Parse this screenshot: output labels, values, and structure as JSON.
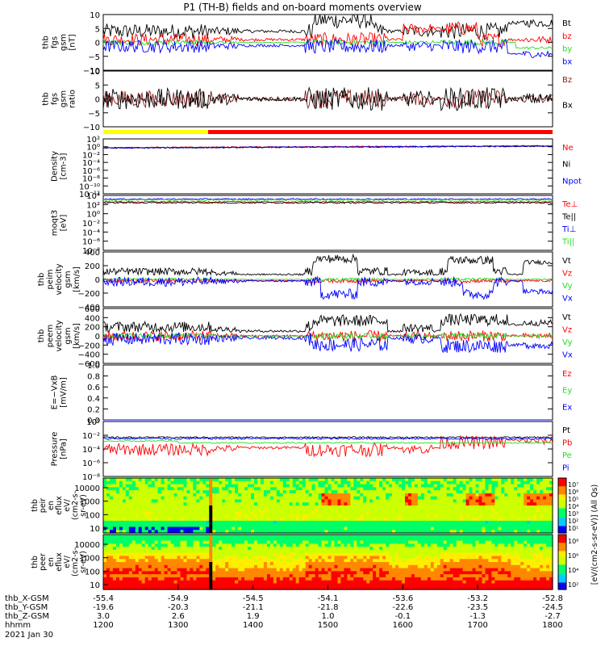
{
  "title": "P1 (TH-B) fields and on-board moments overview",
  "date_label": "2021 Jan 30",
  "colors": {
    "black": "#000000",
    "red": "#ff0000",
    "green": "#22dd22",
    "blue": "#0000ff",
    "darkred": "#8b1a1a",
    "yellow": "#ffff00",
    "magenta": "#dd0000"
  },
  "chart_data": {
    "type": "line",
    "x_axis": {
      "label": "hhmm",
      "ticks": [
        "1200",
        "1300",
        "1400",
        "1500",
        "1600",
        "1700",
        "1800"
      ],
      "xlim": [
        1200,
        1800
      ],
      "ephemeris": [
        {
          "label": "thb_X-GSM",
          "values": [
            "-55.4",
            "-54.9",
            "-54.5",
            "-54.1",
            "-53.6",
            "-53.2",
            "-52.8"
          ]
        },
        {
          "label": "thb_Y-GSM",
          "values": [
            "-19.6",
            "-20.3",
            "-21.1",
            "-21.8",
            "-22.6",
            "-23.5",
            "-24.5"
          ]
        },
        {
          "label": "thb_Z-GSM",
          "values": [
            "3.0",
            "2.6",
            "1.9",
            "1.0",
            "-0.1",
            "-1.3",
            "-2.7"
          ]
        }
      ]
    },
    "mode_bar": [
      {
        "from": 1200,
        "to": 1340,
        "color": "yellow"
      },
      {
        "from": 1340,
        "to": 1800,
        "color": "red"
      }
    ],
    "panels": [
      {
        "id": "fgs-total",
        "ylabel": [
          "thb",
          "fgs",
          "gsm",
          "[nT]"
        ],
        "ylim": [
          -10,
          10
        ],
        "yticks": [
          "10",
          "5",
          "0",
          "−5",
          "−10"
        ],
        "scale": "linear",
        "series": [
          {
            "name": "Bt",
            "color": "black"
          },
          {
            "name": "bz",
            "color": "red"
          },
          {
            "name": "by",
            "color": "green"
          },
          {
            "name": "bx",
            "color": "blue"
          }
        ]
      },
      {
        "id": "fgs-ratio",
        "ylabel": [
          "thb",
          "fgs",
          "gsm",
          "ratio"
        ],
        "ylim": [
          -12,
          12
        ],
        "yticks": [
          "10",
          "5",
          "0",
          "−5",
          "−10"
        ],
        "scale": "linear",
        "series": [
          {
            "name": "Bz",
            "color": "darkred"
          },
          {
            "name": "Bx",
            "color": "black"
          }
        ]
      },
      {
        "id": "density",
        "ylabel": [
          "Density",
          "[cm-3]"
        ],
        "ylim": [
          -12,
          3
        ],
        "yticks": [
          "10²",
          "10⁰",
          "10⁻²",
          "10⁻⁴",
          "10⁻⁶",
          "10⁻⁸",
          "10⁻¹⁰",
          "10⁻¹²"
        ],
        "scale": "log",
        "series": [
          {
            "name": "Ne",
            "color": "red"
          },
          {
            "name": "Ni",
            "color": "black"
          },
          {
            "name": "Npot",
            "color": "blue"
          }
        ]
      },
      {
        "id": "temperature",
        "ylabel": [
          "moqt3",
          "[eV]"
        ],
        "ylim": [
          -8,
          4
        ],
        "yticks": [
          "10⁴",
          "10²",
          "10⁰",
          "10⁻²",
          "10⁻⁴",
          "10⁻⁶",
          "10⁻⁸"
        ],
        "scale": "log",
        "series": [
          {
            "name": "Te⊥",
            "color": "red"
          },
          {
            "name": "Te||",
            "color": "black"
          },
          {
            "name": "Ti⊥",
            "color": "blue"
          },
          {
            "name": "Ti||",
            "color": "green"
          }
        ]
      },
      {
        "id": "peim-velocity",
        "ylabel": [
          "thb",
          "peim",
          "velocity",
          "gsm",
          "[km/s]"
        ],
        "ylim": [
          -400,
          400
        ],
        "yticks": [
          "400",
          "200",
          "0",
          "−200",
          "−400"
        ],
        "scale": "linear",
        "series": [
          {
            "name": "Vt",
            "color": "black"
          },
          {
            "name": "Vz",
            "color": "red"
          },
          {
            "name": "Vy",
            "color": "green"
          },
          {
            "name": "Vx",
            "color": "blue"
          }
        ]
      },
      {
        "id": "peem-velocity",
        "ylabel": [
          "thb",
          "peem",
          "velocity",
          "gsm",
          "[km/s]"
        ],
        "ylim": [
          -600,
          600
        ],
        "yticks": [
          "600",
          "400",
          "200",
          "0",
          "−200",
          "−400",
          "−600"
        ],
        "scale": "linear",
        "series": [
          {
            "name": "Vt",
            "color": "black"
          },
          {
            "name": "Vz",
            "color": "red"
          },
          {
            "name": "Vy",
            "color": "green"
          },
          {
            "name": "Vx",
            "color": "blue"
          }
        ]
      },
      {
        "id": "efield",
        "ylabel": [
          "E=−VxB",
          "[mV/m]"
        ],
        "ylim": [
          0,
          1
        ],
        "yticks": [
          "1.0",
          "0.8",
          "0.6",
          "0.4",
          "0.2",
          "0.0"
        ],
        "scale": "linear",
        "series": [
          {
            "name": "Ez",
            "color": "red"
          },
          {
            "name": "Ey",
            "color": "green"
          },
          {
            "name": "Ex",
            "color": "blue"
          }
        ]
      },
      {
        "id": "pressure",
        "ylabel": [
          "Pressure",
          "[nPa]"
        ],
        "ylim": [
          -8,
          1
        ],
        "yticks": [
          "10⁰",
          "10⁻²",
          "10⁻⁴",
          "10⁻⁶",
          "10⁻⁸"
        ],
        "scale": "log",
        "series": [
          {
            "name": "Pt",
            "color": "black"
          },
          {
            "name": "Pb",
            "color": "red"
          },
          {
            "name": "Pe",
            "color": "green"
          },
          {
            "name": "Pi",
            "color": "blue"
          }
        ]
      }
    ],
    "spectrograms": [
      {
        "id": "peir-spec",
        "type": "heatmap",
        "ylabel": [
          "thb",
          "peir",
          "en",
          "eflux",
          "eV/",
          "(cm2-s-",
          "sr-eV)"
        ],
        "yticks": [
          "10000",
          "1000",
          "100",
          "10"
        ],
        "ylim": [
          5,
          30000
        ],
        "scale": "log",
        "colorbar": {
          "ticks": [
            "10⁷",
            "10⁶",
            "10⁵",
            "10⁴",
            "10³",
            "10²",
            "10¹"
          ]
        }
      },
      {
        "id": "peer-spec",
        "type": "heatmap",
        "ylabel": [
          "thb",
          "peer",
          "en",
          "eflux",
          "eV/",
          "(cm2-s-",
          "sr-eV)"
        ],
        "yticks": [
          "10000",
          "1000",
          "100",
          "10"
        ],
        "ylim": [
          5,
          30000
        ],
        "scale": "log",
        "colorbar": {
          "ticks": [
            "10⁸",
            "10⁶",
            "10⁴",
            "10²"
          ]
        }
      }
    ],
    "colorbar_label": "[eV/(cm2-s-sr-eV)] (All Qs)"
  }
}
